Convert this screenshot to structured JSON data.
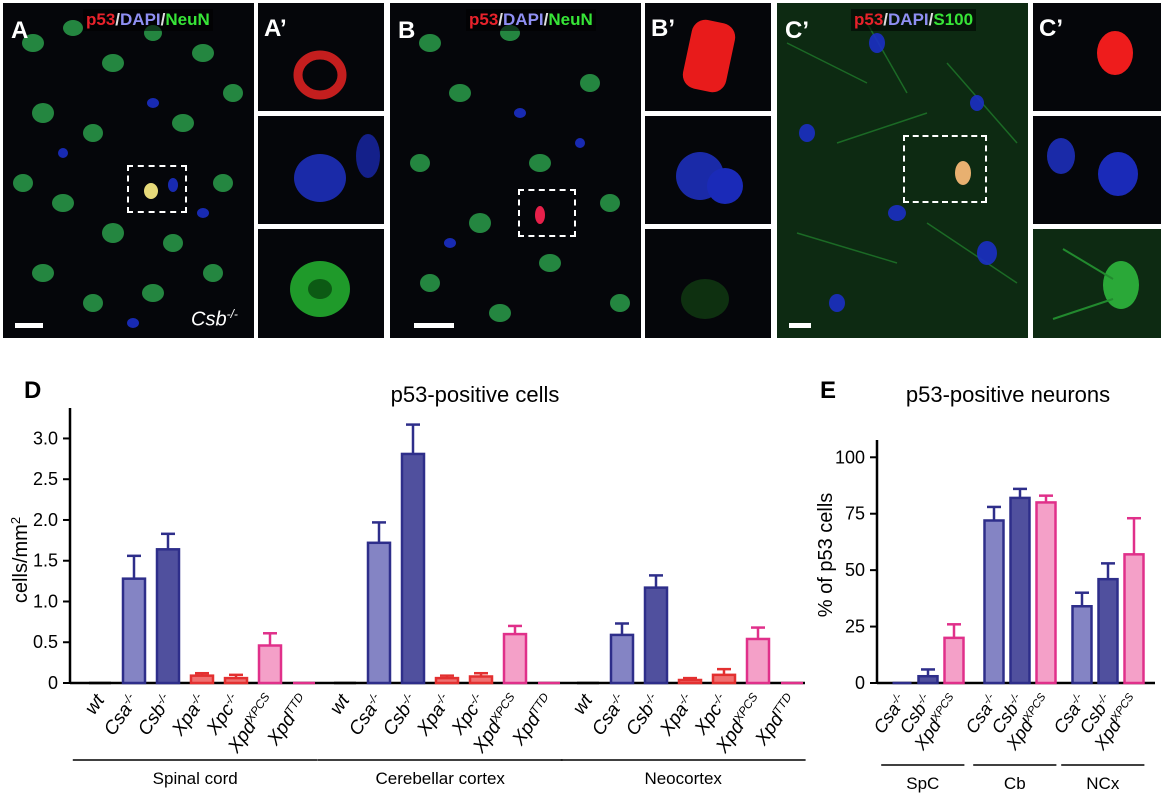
{
  "panels": {
    "A": {
      "letter": "A",
      "stain_red": "p53",
      "stain_blue": "DAPI",
      "stain_green": "NeuN",
      "genotype": "Csb",
      "genotype_sup": "-/-"
    },
    "A_zoom": {
      "letter": "A’"
    },
    "B": {
      "letter": "B",
      "stain_red": "p53",
      "stain_blue": "DAPI",
      "stain_green": "NeuN"
    },
    "B_zoom": {
      "letter": "B’"
    },
    "C": {
      "letter": "C’",
      "stain_red": "p53",
      "stain_blue": "DAPI",
      "stain_green": "S100"
    },
    "C_zoom": {
      "letter": "C’"
    }
  },
  "separator": "/",
  "colors": {
    "red": "#e8222b",
    "blue": "#3a3ad8",
    "green": "#2fbf2f",
    "light_blue": "#8484c4",
    "dark_blue": "#50509e",
    "navy": "#2e2e8a",
    "red_fill": "#f07070",
    "red_line": "#e33030",
    "pink_fill": "#f4a0c8",
    "pink_line": "#e0308a"
  },
  "chart_data": [
    {
      "type": "bar",
      "panel_letter": "D",
      "title": "p53-positive cells",
      "ylabel": "cells/mm",
      "ylabel_sup": "2",
      "ylim": [
        0,
        3.3
      ],
      "yticks": [
        "0",
        "0.5",
        "1.0",
        "1.5",
        "2.0",
        "2.5",
        "3.0"
      ],
      "ytick_values": [
        0,
        0.5,
        1.0,
        1.5,
        2.0,
        2.5,
        3.0
      ],
      "genotypes": [
        {
          "base": "wt",
          "sup": ""
        },
        {
          "base": "Csa",
          "sup": "-/-"
        },
        {
          "base": "Csb",
          "sup": "-/-"
        },
        {
          "base": "Xpa",
          "sup": "-/-"
        },
        {
          "base": "Xpc",
          "sup": "-/-"
        },
        {
          "base": "Xpd",
          "sup": "XPCS"
        },
        {
          "base": "Xpd",
          "sup": "TTD"
        }
      ],
      "styles": [
        "black",
        "light_blue",
        "dark_blue",
        "red",
        "red",
        "pink",
        "pink_line"
      ],
      "groups": [
        {
          "name": "Spinal cord",
          "values": [
            0,
            1.28,
            1.64,
            0.09,
            0.06,
            0.46,
            0
          ],
          "errors": [
            0,
            0.28,
            0.19,
            0.03,
            0.04,
            0.15,
            0
          ]
        },
        {
          "name": "Cerebellar cortex",
          "values": [
            0,
            1.72,
            2.81,
            0.06,
            0.08,
            0.6,
            0
          ],
          "errors": [
            0,
            0.25,
            0.36,
            0.03,
            0.04,
            0.1,
            0
          ]
        },
        {
          "name": "Neocortex",
          "values": [
            0,
            0.59,
            1.17,
            0.03,
            0.1,
            0.54,
            0
          ],
          "errors": [
            0,
            0.14,
            0.15,
            0.03,
            0.07,
            0.14,
            0
          ]
        }
      ]
    },
    {
      "type": "bar",
      "panel_letter": "E",
      "title": "p53-positive neurons",
      "ylabel": "% of p53 cells",
      "ylim": [
        0,
        105
      ],
      "yticks": [
        "0",
        "25",
        "50",
        "75",
        "100"
      ],
      "ytick_values": [
        0,
        25,
        50,
        75,
        100
      ],
      "genotypes": [
        {
          "base": "Csa",
          "sup": "-/-"
        },
        {
          "base": "Csb",
          "sup": "-/-"
        },
        {
          "base": "Xpd",
          "sup": "XPCS"
        }
      ],
      "styles": [
        "light_blue",
        "dark_blue",
        "pink"
      ],
      "groups": [
        {
          "name": "SpC",
          "values": [
            0,
            3,
            20
          ],
          "errors": [
            0,
            3,
            6
          ]
        },
        {
          "name": "Cb",
          "values": [
            72,
            82,
            80
          ],
          "errors": [
            6,
            4,
            3
          ]
        },
        {
          "name": "NCx",
          "values": [
            34,
            46,
            57
          ],
          "errors": [
            6,
            7,
            16
          ]
        }
      ]
    }
  ]
}
